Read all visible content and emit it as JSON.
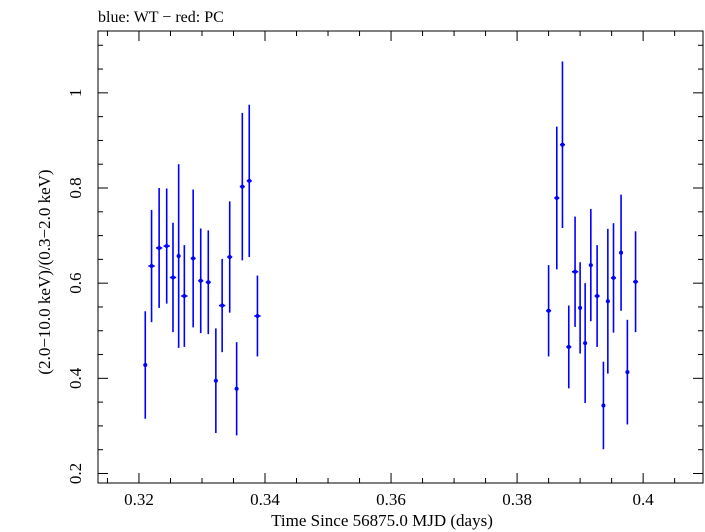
{
  "chart_data": {
    "type": "scatter",
    "title": "blue: WT − red: PC",
    "xlabel": "Time Since 56875.0 MJD (days)",
    "ylabel": "(2.0−10.0 keV)/(0.3−2.0 keV)",
    "xlim": [
      0.3135,
      0.4095
    ],
    "ylim": [
      0.18,
      1.13
    ],
    "x_ticks": [
      0.32,
      0.34,
      0.36,
      0.38,
      0.4
    ],
    "x_tick_labels": [
      "0.32",
      "0.34",
      "0.36",
      "0.38",
      "0.4"
    ],
    "y_ticks": [
      0.2,
      0.4,
      0.6,
      0.8,
      1.0
    ],
    "y_tick_labels": [
      "0.2",
      "0.4",
      "0.6",
      "0.8",
      "1"
    ],
    "grid": false,
    "series": [
      {
        "color": "#0000ff",
        "x": [
          0.321,
          0.322,
          0.3232,
          0.3244,
          0.3254,
          0.3263,
          0.3272,
          0.3286,
          0.3298,
          0.331,
          0.3322,
          0.3332,
          0.3344,
          0.3355,
          0.3364,
          0.3375,
          0.3388,
          0.385,
          0.3863,
          0.3872,
          0.3882,
          0.3892,
          0.39,
          0.3908,
          0.3917,
          0.3927,
          0.3937,
          0.3944,
          0.3953,
          0.3965,
          0.3975,
          0.3988
        ],
        "y": [
          0.428,
          0.636,
          0.674,
          0.678,
          0.612,
          0.657,
          0.573,
          0.652,
          0.605,
          0.602,
          0.395,
          0.553,
          0.655,
          0.378,
          0.803,
          0.815,
          0.531,
          0.542,
          0.779,
          0.891,
          0.466,
          0.624,
          0.548,
          0.474,
          0.638,
          0.573,
          0.343,
          0.562,
          0.611,
          0.664,
          0.413,
          0.603
        ],
        "yerr": [
          0.113,
          0.118,
          0.126,
          0.121,
          0.115,
          0.193,
          0.107,
          0.145,
          0.11,
          0.109,
          0.11,
          0.098,
          0.117,
          0.098,
          0.155,
          0.16,
          0.085,
          0.096,
          0.15,
          0.175,
          0.087,
          0.116,
          0.096,
          0.126,
          0.118,
          0.107,
          0.092,
          0.152,
          0.115,
          0.122,
          0.11,
          0.106
        ],
        "xerr": [
          0.0003,
          0.0005,
          0.0005,
          0.0005,
          0.0005,
          0.0003,
          0.0005,
          0.0004,
          0.0004,
          0.0004,
          0.0003,
          0.0005,
          0.0004,
          0.0003,
          0.0004,
          0.0004,
          0.0005,
          0.0004,
          0.0004,
          0.0004,
          0.0004,
          0.0005,
          0.0003,
          0.0003,
          0.0003,
          0.0004,
          0.0003,
          0.0003,
          0.0004,
          0.0003,
          0.0003,
          0.0004
        ]
      }
    ]
  }
}
